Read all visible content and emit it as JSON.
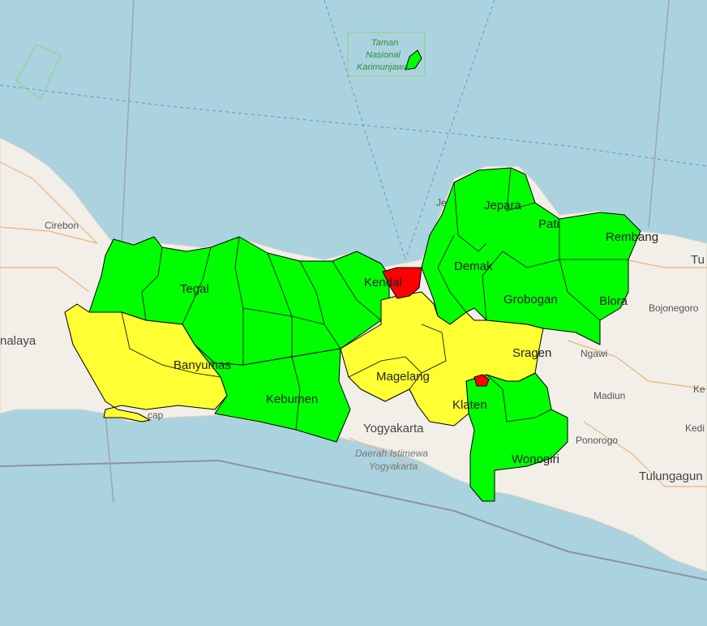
{
  "colors": {
    "water": "#aad3df",
    "land": "#f2efe9",
    "green": "#00ff00",
    "yellow": "#ffff33",
    "red": "#ff0000",
    "border": "#000000"
  },
  "district_labels": {
    "tegal": "Tegal",
    "banyumas": "Banyumas",
    "kebumen": "Kebumen",
    "kendal": "Kendal",
    "magelang": "Magelang",
    "klaten": "Klaten",
    "wonogiri": "Wonogiri",
    "demak": "Demak",
    "jepara": "Jepara",
    "pati": "Pati",
    "rembang": "Rembang",
    "grobogan": "Grobogan",
    "blora": "Blora",
    "sragen": "Sragen"
  },
  "basemap_labels": {
    "cirebon": "Cirebon",
    "nalaya": "nalaya",
    "yogyakarta": "Yogyakarta",
    "diy_line1": "Daerah Istimewa",
    "diy_line2": "Yogyakarta",
    "bojonegoro": "Bojonegoro",
    "ngawi": "Ngawi",
    "madiun": "Madiun",
    "ponorogo": "Ponorogo",
    "tulungagung": "Tulungagun",
    "tu": "Tu",
    "ke": "Ke",
    "kedi": "Kedi",
    "park_line1": "Taman",
    "park_line2": "Nasional",
    "park_line3": "Karimunjawa",
    "cap": "cap",
    "je": "Je"
  }
}
